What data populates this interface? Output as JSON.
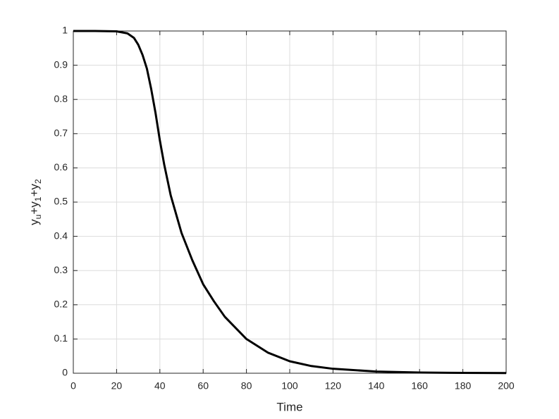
{
  "chart_data": {
    "type": "line",
    "xlabel": "Time",
    "ylabel": [
      "y",
      "u",
      "+y",
      "1",
      "+y",
      "2"
    ],
    "x": [
      0,
      10,
      20,
      25,
      28,
      30,
      32,
      34,
      36,
      38,
      40,
      42,
      45,
      50,
      55,
      60,
      65,
      70,
      80,
      90,
      100,
      110,
      120,
      140,
      160,
      180,
      200
    ],
    "series": [
      {
        "color": "#000000",
        "values": [
          1,
          1,
          0.999,
          0.993,
          0.98,
          0.96,
          0.93,
          0.89,
          0.83,
          0.76,
          0.68,
          0.61,
          0.52,
          0.41,
          0.33,
          0.26,
          0.21,
          0.165,
          0.1,
          0.06,
          0.035,
          0.021,
          0.013,
          0.005,
          0.002,
          0.001,
          0.0005
        ]
      }
    ],
    "xlim": [
      0,
      200
    ],
    "xticks": [
      0,
      20,
      40,
      60,
      80,
      100,
      120,
      140,
      160,
      180,
      200
    ],
    "ylim": [
      0,
      1
    ],
    "yticks": [
      0,
      0.1,
      0.2,
      0.3,
      0.4,
      0.5,
      0.6,
      0.7,
      0.8,
      0.9,
      1
    ],
    "grid": true
  }
}
